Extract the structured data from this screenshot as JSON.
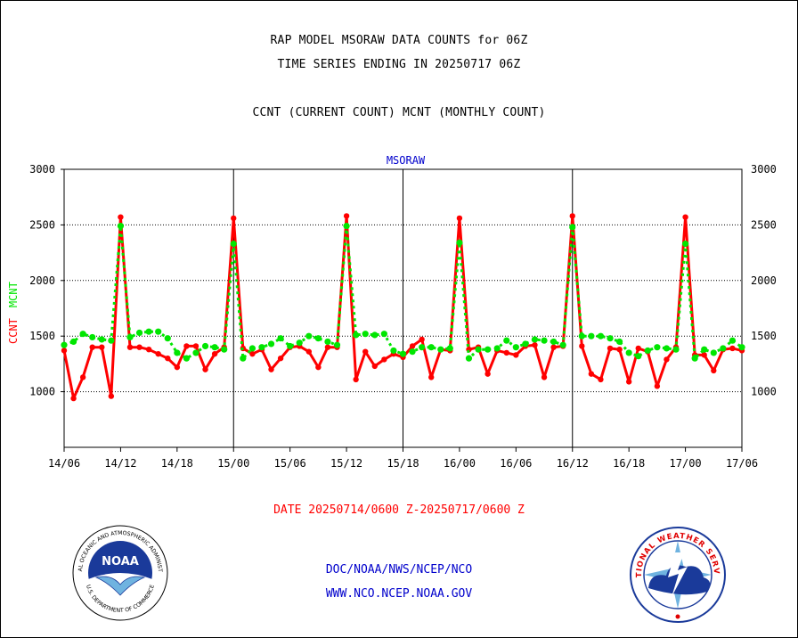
{
  "titles": {
    "line1": "RAP MODEL MSORAW DATA COUNTS for 06Z",
    "line2": "TIME SERIES ENDING IN 20250717 06Z",
    "line3": "CCNT (CURRENT COUNT) MCNT (MONTHLY COUNT)"
  },
  "chart_data": {
    "type": "line",
    "title": "MSORAW",
    "ylabel_left_series": [
      "CCNT",
      "MCNT"
    ],
    "ylim": [
      500,
      3000
    ],
    "yticks": [
      1000,
      1500,
      2000,
      2500,
      3000
    ],
    "xlim": [
      0,
      72
    ],
    "x_tick_labels": [
      "14/06",
      "14/12",
      "14/18",
      "15/00",
      "15/06",
      "15/12",
      "15/18",
      "16/00",
      "16/06",
      "16/12",
      "16/18",
      "17/00",
      "17/06"
    ],
    "x_unit": "hours after 14/06",
    "grid": true,
    "series": [
      {
        "name": "CCNT",
        "color": "#ff0000",
        "x": [
          0,
          1,
          2,
          3,
          4,
          5,
          6,
          7,
          8,
          9,
          10,
          11,
          12,
          13,
          14,
          15,
          16,
          17,
          18,
          19,
          20,
          21,
          22,
          23,
          24,
          25,
          26,
          27,
          28,
          29,
          30,
          31,
          32,
          33,
          34,
          35,
          36,
          37,
          38,
          39,
          40,
          41,
          42,
          43,
          44,
          45,
          46,
          47,
          48,
          49,
          50,
          51,
          52,
          53,
          54,
          55,
          56,
          57,
          58,
          59,
          60,
          61,
          62,
          63,
          64,
          65,
          66,
          67,
          68,
          69,
          70,
          71,
          72
        ],
        "values": [
          1370,
          940,
          1130,
          1400,
          1400,
          960,
          2570,
          1400,
          1400,
          1380,
          1340,
          1300,
          1220,
          1410,
          1410,
          1200,
          1340,
          1400,
          2560,
          1390,
          1340,
          1380,
          1200,
          1300,
          1400,
          1410,
          1360,
          1220,
          1400,
          1400,
          2580,
          1110,
          1360,
          1230,
          1290,
          1340,
          1310,
          1410,
          1470,
          1130,
          1380,
          1370,
          2560,
          1380,
          1400,
          1160,
          1370,
          1350,
          1330,
          1410,
          1420,
          1130,
          1400,
          1410,
          2580,
          1410,
          1160,
          1110,
          1390,
          1380,
          1090,
          1390,
          1360,
          1050,
          1290,
          1400,
          2570,
          1330,
          1330,
          1190,
          1380,
          1390,
          1370
        ]
      },
      {
        "name": "MCNT",
        "color": "#00e600",
        "x": [
          0,
          1,
          2,
          3,
          4,
          5,
          6,
          7,
          8,
          9,
          10,
          11,
          12,
          13,
          14,
          15,
          16,
          17,
          18,
          19,
          20,
          21,
          22,
          23,
          24,
          25,
          26,
          27,
          28,
          29,
          30,
          31,
          32,
          33,
          34,
          35,
          36,
          37,
          38,
          39,
          40,
          41,
          42,
          43,
          44,
          45,
          46,
          47,
          48,
          49,
          50,
          51,
          52,
          53,
          54,
          55,
          56,
          57,
          58,
          59,
          60,
          61,
          62,
          63,
          64,
          65,
          66,
          67,
          68,
          69,
          70,
          71,
          72
        ],
        "values": [
          1420,
          1450,
          1520,
          1490,
          1470,
          1460,
          2490,
          1490,
          1530,
          1540,
          1540,
          1480,
          1350,
          1300,
          1350,
          1410,
          1400,
          1380,
          2330,
          1300,
          1390,
          1400,
          1430,
          1480,
          1410,
          1440,
          1500,
          1480,
          1450,
          1420,
          2490,
          1510,
          1520,
          1510,
          1520,
          1370,
          1340,
          1360,
          1400,
          1400,
          1380,
          1390,
          2340,
          1300,
          1380,
          1380,
          1390,
          1460,
          1400,
          1430,
          1470,
          1460,
          1450,
          1420,
          2480,
          1500,
          1500,
          1500,
          1480,
          1450,
          1350,
          1320,
          1370,
          1400,
          1390,
          1380,
          2330,
          1300,
          1380,
          1350,
          1390,
          1460,
          1400
        ]
      }
    ]
  },
  "footer": {
    "date_range": "DATE 20250714/0600 Z-20250717/0600 Z",
    "org": "DOC/NOAA/NWS/NCEP/NCO",
    "url": "WWW.NCO.NCEP.NOAA.GOV"
  },
  "logos": {
    "noaa_text": "NOAA",
    "noaa_ring": "NATIONAL OCEANIC AND ATMOSPHERIC ADMINISTRATION",
    "noaa_ring_bottom": "U.S. DEPARTMENT OF COMMERCE",
    "nws_ring": "NATIONAL WEATHER SERVICE"
  },
  "colors": {
    "axes": "#000000",
    "title_blue": "#0000cc",
    "ccnt": "#ff0000",
    "mcnt": "#00e600",
    "footer_red": "#ff0000",
    "footer_blue": "#0000cc"
  }
}
